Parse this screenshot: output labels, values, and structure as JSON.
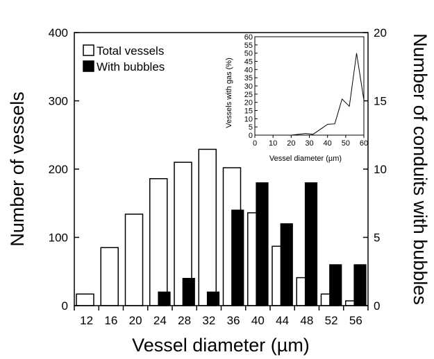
{
  "chart_data": {
    "type": "bar",
    "xlabel": "Vessel diameter (µm)",
    "ylabel_left": "Number of vessels",
    "ylabel_right": "Number of conduits with bubbles",
    "categories": [
      "12",
      "16",
      "20",
      "24",
      "28",
      "32",
      "36",
      "40",
      "44",
      "48",
      "52",
      "56"
    ],
    "ylim_left": [
      0,
      400
    ],
    "yticks_left": [
      0,
      100,
      200,
      300,
      400
    ],
    "ylim_right": [
      0,
      20
    ],
    "yticks_right": [
      0,
      5,
      10,
      15,
      20
    ],
    "grid": false,
    "legend_position": "top-left",
    "series": [
      {
        "name": "Total vessels",
        "axis": "left",
        "color": "#ffffff",
        "edgecolor": "#000000",
        "values": [
          17,
          85,
          134,
          186,
          210,
          229,
          202,
          136,
          87,
          41,
          17,
          7
        ]
      },
      {
        "name": "With bubbles",
        "axis": "right",
        "color": "#000000",
        "edgecolor": "#000000",
        "values": [
          0,
          0,
          0,
          1,
          2,
          1,
          7,
          9,
          6,
          9,
          3,
          3
        ]
      }
    ],
    "inset": {
      "type": "line",
      "xlabel": "Vessel diameter (µm)",
      "ylabel": "Vessels with gas (%)",
      "xlim": [
        0,
        60
      ],
      "ylim": [
        0,
        60
      ],
      "xticks": [
        0,
        10,
        20,
        30,
        40,
        50,
        60
      ],
      "yticks": [
        0,
        5,
        10,
        15,
        20,
        25,
        30,
        35,
        40,
        45,
        50,
        55,
        60
      ],
      "x": [
        20,
        24,
        28,
        32,
        36,
        40,
        44,
        48,
        52,
        56,
        60
      ],
      "y": [
        0,
        0.5,
        1,
        0.5,
        3.5,
        6.6,
        6.9,
        22,
        17.6,
        50,
        21.4
      ]
    }
  }
}
